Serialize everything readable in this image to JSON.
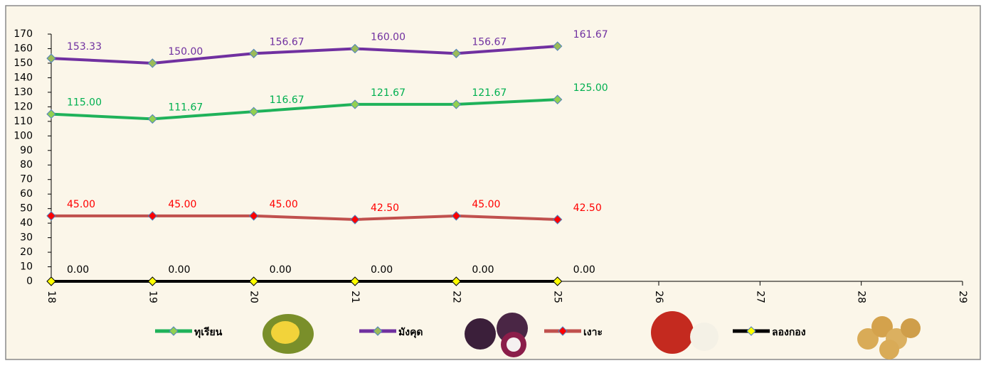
{
  "chart_data": {
    "type": "line",
    "categories": [
      "18",
      "19",
      "20",
      "21",
      "22",
      "25",
      "26",
      "27",
      "28",
      "29"
    ],
    "ylim": [
      0,
      170
    ],
    "yticks": [
      0,
      10,
      20,
      30,
      40,
      50,
      60,
      70,
      80,
      90,
      100,
      110,
      120,
      130,
      140,
      150,
      160,
      170
    ],
    "series": [
      {
        "name": "ทุเรียน",
        "color": "#1fb25a",
        "marker_color": "#92d050",
        "label_color": "#00b050",
        "values": [
          115,
          111.67,
          116.67,
          121.67,
          121.67,
          125,
          null,
          null,
          null,
          null
        ],
        "value_labels": [
          "115.00",
          "111.67",
          "116.67",
          "121.67",
          "121.67",
          "125.00",
          null,
          null,
          null,
          null
        ]
      },
      {
        "name": "มังคุด",
        "color": "#7030a0",
        "marker_color": "#9bbb59",
        "label_color": "#7030a0",
        "values": [
          153.33,
          150,
          156.67,
          160,
          156.67,
          161.67,
          null,
          null,
          null,
          null
        ],
        "value_labels": [
          "153.33",
          "150.00",
          "156.67",
          "160.00",
          "156.67",
          "161.67",
          null,
          null,
          null,
          null
        ]
      },
      {
        "name": "เงาะ",
        "color": "#c0504d",
        "marker_color": "#ff0000",
        "label_color": "#ff0000",
        "values": [
          45,
          45,
          45,
          42.5,
          45,
          42.5,
          null,
          null,
          null,
          null
        ],
        "value_labels": [
          "45.00",
          "45.00",
          "45.00",
          "42.50",
          "45.00",
          "42.50",
          null,
          null,
          null,
          null
        ]
      },
      {
        "name": "ลองกอง",
        "color": "#000000",
        "marker_color": "#ffff00",
        "label_color": "#000000",
        "values": [
          0,
          0,
          0,
          0,
          0,
          0,
          null,
          null,
          null,
          null
        ],
        "value_labels": [
          "0.00",
          "0.00",
          "0.00",
          "0.00",
          "0.00",
          "0.00",
          null,
          null,
          null,
          null
        ]
      }
    ]
  }
}
